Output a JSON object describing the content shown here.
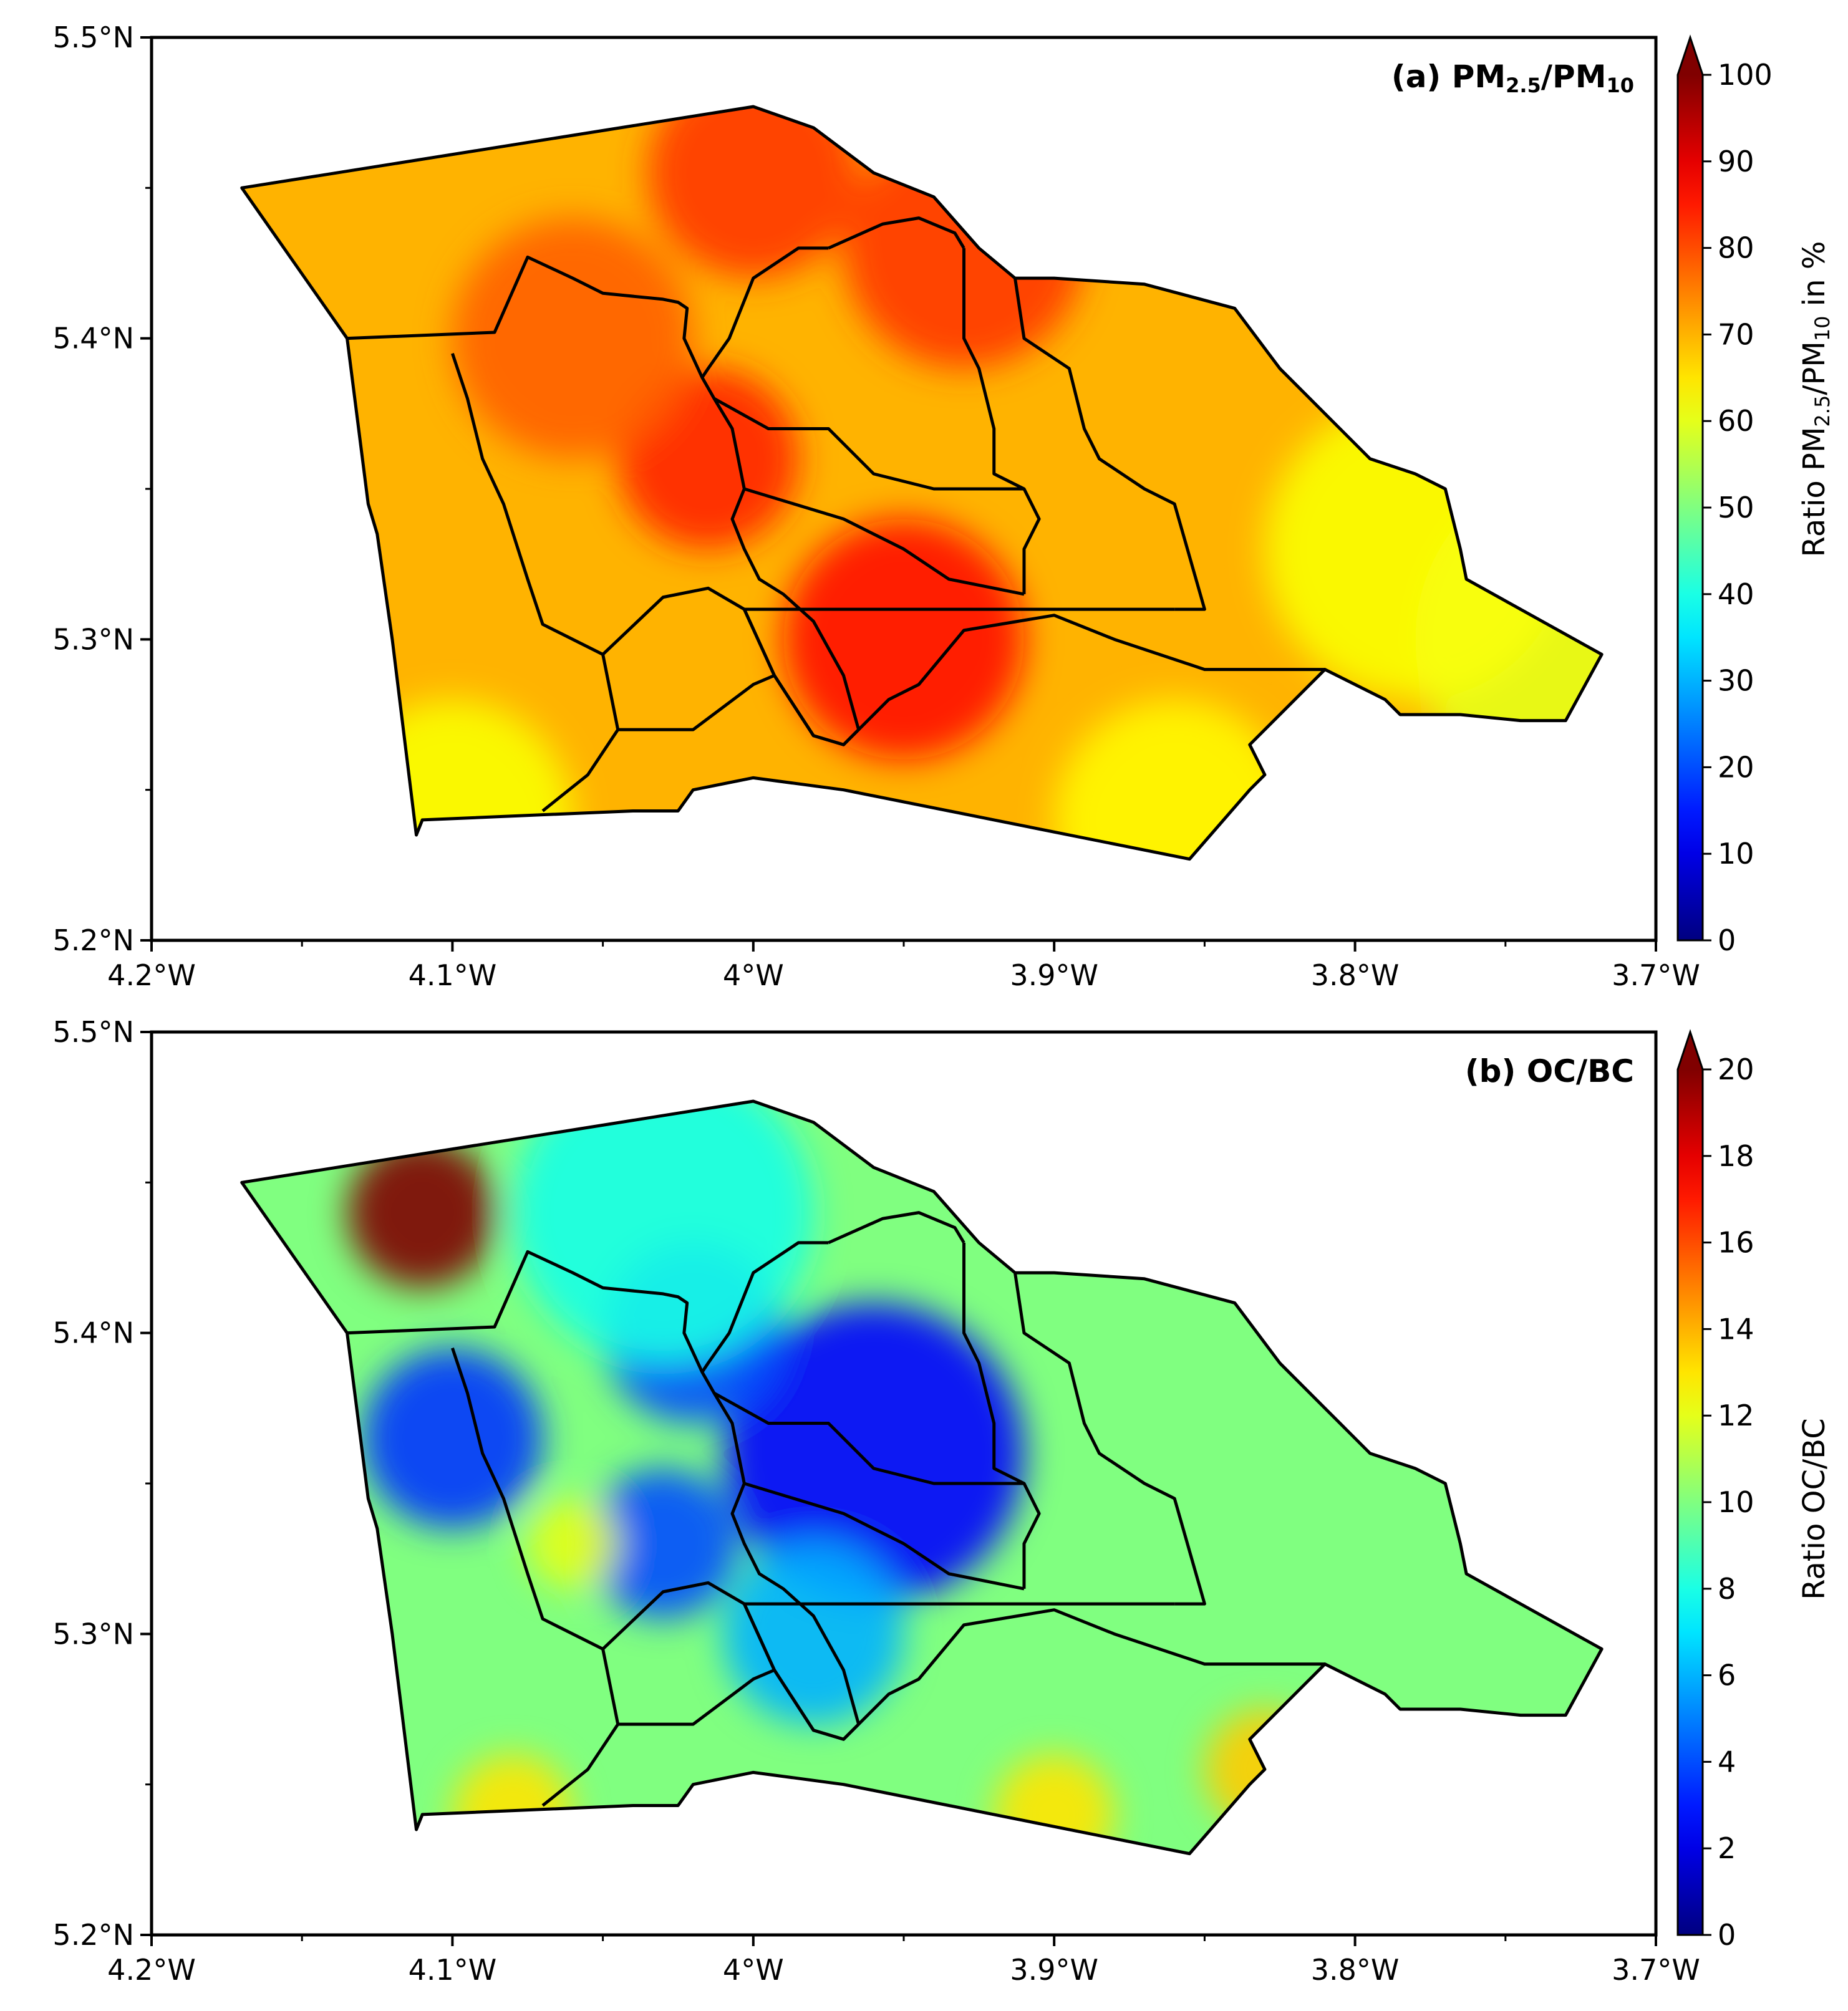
{
  "panels": [
    {
      "id": "a",
      "title_prefix": "(a) PM",
      "title_sub1": "2.5",
      "title_mid": "/PM",
      "title_sub2": "10",
      "colorbar": {
        "label_prefix": "Ratio PM",
        "label_sub1": "2.5",
        "label_mid": "/PM",
        "label_sub2": "10",
        "label_suffix": " in %",
        "ticks": [
          "0",
          "10",
          "20",
          "30",
          "40",
          "50",
          "60",
          "70",
          "80",
          "90",
          "100"
        ],
        "min": 0,
        "max": 100
      },
      "base_value": 70,
      "hotspots": [
        {
          "lon": -4.0,
          "lat": 5.455,
          "value": 82,
          "r": 0.035
        },
        {
          "lon": -3.93,
          "lat": 5.43,
          "value": 82,
          "r": 0.04
        },
        {
          "lon": -4.015,
          "lat": 5.36,
          "value": 84,
          "r": 0.03
        },
        {
          "lon": -3.95,
          "lat": 5.3,
          "value": 86,
          "r": 0.04
        },
        {
          "lon": -4.06,
          "lat": 5.4,
          "value": 78,
          "r": 0.04
        },
        {
          "lon": -3.72,
          "lat": 5.3,
          "value": 60,
          "r": 0.06
        },
        {
          "lon": -3.78,
          "lat": 5.33,
          "value": 62,
          "r": 0.05
        },
        {
          "lon": -4.1,
          "lat": 5.24,
          "value": 62,
          "r": 0.04
        },
        {
          "lon": -3.86,
          "lat": 5.24,
          "value": 63,
          "r": 0.04
        }
      ]
    },
    {
      "id": "b",
      "title_prefix": "(b) OC/BC",
      "title_sub1": "",
      "title_mid": "",
      "title_sub2": "",
      "colorbar": {
        "label_prefix": "Ratio OC/BC",
        "label_sub1": "",
        "label_mid": "",
        "label_sub2": "",
        "label_suffix": "",
        "ticks": [
          "0",
          "2",
          "4",
          "6",
          "8",
          "10",
          "12",
          "14",
          "16",
          "18",
          "20"
        ],
        "min": 0,
        "max": 20
      },
      "base_value": 10,
      "hotspots": [
        {
          "lon": -4.11,
          "lat": 5.44,
          "value": 21,
          "r": 0.025
        },
        {
          "lon": -4.1,
          "lat": 5.365,
          "value": 3.5,
          "r": 0.03
        },
        {
          "lon": -3.96,
          "lat": 5.36,
          "value": 2.5,
          "r": 0.05
        },
        {
          "lon": -4.02,
          "lat": 5.4,
          "value": 4,
          "r": 0.03
        },
        {
          "lon": -4.03,
          "lat": 5.33,
          "value": 4,
          "r": 0.025
        },
        {
          "lon": -3.98,
          "lat": 5.3,
          "value": 6,
          "r": 0.03
        },
        {
          "lon": -4.03,
          "lat": 5.44,
          "value": 8,
          "r": 0.05
        },
        {
          "lon": -4.08,
          "lat": 5.24,
          "value": 13,
          "r": 0.02
        },
        {
          "lon": -3.9,
          "lat": 5.24,
          "value": 13,
          "r": 0.02
        },
        {
          "lon": -3.83,
          "lat": 5.255,
          "value": 13.5,
          "r": 0.02
        },
        {
          "lon": -4.06,
          "lat": 5.33,
          "value": 12,
          "r": 0.015
        }
      ]
    }
  ],
  "axes": {
    "lon_min": -4.2,
    "lon_max": -3.7,
    "lat_min": 5.2,
    "lat_max": 5.5,
    "x_ticks": [
      {
        "value": -4.2,
        "label": "4.2°W"
      },
      {
        "value": -4.1,
        "label": "4.1°W"
      },
      {
        "value": -4.0,
        "label": "4°W"
      },
      {
        "value": -3.9,
        "label": "3.9°W"
      },
      {
        "value": -3.8,
        "label": "3.8°W"
      },
      {
        "value": -3.7,
        "label": "3.7°W"
      }
    ],
    "y_ticks": [
      {
        "value": 5.5,
        "label": "5.5°N"
      },
      {
        "value": 5.4,
        "label": "5.4°N"
      },
      {
        "value": 5.3,
        "label": "5.3°N"
      },
      {
        "value": 5.2,
        "label": "5.2°N"
      }
    ]
  },
  "boundaries": {
    "outline": [
      [
        -4.17,
        5.45
      ],
      [
        -4.0,
        5.477
      ],
      [
        -3.98,
        5.47
      ],
      [
        -3.96,
        5.455
      ],
      [
        -3.94,
        5.447
      ],
      [
        -3.925,
        5.43
      ],
      [
        -3.913,
        5.42
      ],
      [
        -3.9,
        5.42
      ],
      [
        -3.87,
        5.418
      ],
      [
        -3.84,
        5.41
      ],
      [
        -3.825,
        5.39
      ],
      [
        -3.81,
        5.375
      ],
      [
        -3.795,
        5.36
      ],
      [
        -3.78,
        5.355
      ],
      [
        -3.77,
        5.35
      ],
      [
        -3.765,
        5.33
      ],
      [
        -3.763,
        5.32
      ],
      [
        -3.745,
        5.31
      ],
      [
        -3.718,
        5.295
      ],
      [
        -3.73,
        5.273
      ],
      [
        -3.745,
        5.273
      ],
      [
        -3.765,
        5.275
      ],
      [
        -3.785,
        5.275
      ],
      [
        -3.79,
        5.28
      ],
      [
        -3.81,
        5.29
      ],
      [
        -3.835,
        5.265
      ],
      [
        -3.83,
        5.255
      ],
      [
        -3.835,
        5.25
      ],
      [
        -3.855,
        5.227
      ],
      [
        -3.92,
        5.24
      ],
      [
        -3.97,
        5.25
      ],
      [
        -4.0,
        5.254
      ],
      [
        -4.02,
        5.25
      ],
      [
        -4.025,
        5.243
      ],
      [
        -4.04,
        5.243
      ],
      [
        -4.11,
        5.24
      ],
      [
        -4.112,
        5.235
      ],
      [
        -4.12,
        5.3
      ],
      [
        -4.125,
        5.335
      ],
      [
        -4.128,
        5.345
      ],
      [
        -4.135,
        5.4
      ],
      [
        -4.17,
        5.45
      ]
    ],
    "districts": [
      [
        [
          -4.135,
          5.4
        ],
        [
          -4.086,
          5.402
        ],
        [
          -4.075,
          5.427
        ],
        [
          -4.06,
          5.42
        ],
        [
          -4.05,
          5.415
        ],
        [
          -4.03,
          5.413
        ],
        [
          -4.025,
          5.412
        ],
        [
          -4.022,
          5.41
        ],
        [
          -4.023,
          5.4
        ],
        [
          -4.017,
          5.387
        ],
        [
          -4.013,
          5.38
        ],
        [
          -4.007,
          5.37
        ],
        [
          -4.003,
          5.35
        ],
        [
          -4.007,
          5.34
        ],
        [
          -4.003,
          5.33
        ],
        [
          -3.998,
          5.32
        ],
        [
          -3.99,
          5.315
        ],
        [
          -3.98,
          5.306
        ],
        [
          -3.97,
          5.288
        ],
        [
          -3.965,
          5.27
        ],
        [
          -3.97,
          5.265
        ],
        [
          -3.98,
          5.268
        ],
        [
          -3.993,
          5.288
        ],
        [
          -4.003,
          5.31
        ],
        [
          -4.015,
          5.317
        ],
        [
          -4.03,
          5.314
        ],
        [
          -4.05,
          5.295
        ],
        [
          -4.07,
          5.305
        ],
        [
          -4.075,
          5.32
        ],
        [
          -4.083,
          5.345
        ],
        [
          -4.09,
          5.36
        ],
        [
          -4.095,
          5.38
        ],
        [
          -4.1,
          5.395
        ]
      ],
      [
        [
          -4.003,
          5.31
        ],
        [
          -3.993,
          5.288
        ],
        [
          -3.98,
          5.268
        ],
        [
          -3.97,
          5.265
        ],
        [
          -3.965,
          5.27
        ],
        [
          -3.955,
          5.28
        ],
        [
          -3.945,
          5.285
        ],
        [
          -3.93,
          5.303
        ],
        [
          -3.9,
          5.308
        ],
        [
          -3.88,
          5.3
        ],
        [
          -3.85,
          5.29
        ],
        [
          -3.81,
          5.29
        ]
      ],
      [
        [
          -4.003,
          5.31
        ],
        [
          -3.94,
          5.31
        ],
        [
          -3.86,
          5.31
        ]
      ],
      [
        [
          -4.013,
          5.38
        ],
        [
          -3.995,
          5.37
        ],
        [
          -3.975,
          5.37
        ],
        [
          -3.96,
          5.355
        ],
        [
          -3.94,
          5.35
        ],
        [
          -3.91,
          5.35
        ]
      ],
      [
        [
          -4.003,
          5.35
        ],
        [
          -3.97,
          5.34
        ],
        [
          -3.95,
          5.33
        ],
        [
          -3.935,
          5.32
        ],
        [
          -3.91,
          5.315
        ]
      ],
      [
        [
          -3.975,
          5.43
        ],
        [
          -3.957,
          5.438
        ],
        [
          -3.945,
          5.44
        ],
        [
          -3.933,
          5.435
        ],
        [
          -3.93,
          5.43
        ]
      ],
      [
        [
          -3.93,
          5.43
        ],
        [
          -3.93,
          5.4
        ],
        [
          -3.925,
          5.39
        ],
        [
          -3.92,
          5.37
        ],
        [
          -3.92,
          5.355
        ],
        [
          -3.91,
          5.35
        ],
        [
          -3.905,
          5.34
        ],
        [
          -3.91,
          5.33
        ],
        [
          -3.91,
          5.315
        ]
      ],
      [
        [
          -3.913,
          5.42
        ],
        [
          -3.91,
          5.4
        ],
        [
          -3.895,
          5.39
        ],
        [
          -3.89,
          5.37
        ],
        [
          -3.885,
          5.36
        ],
        [
          -3.87,
          5.35
        ],
        [
          -3.86,
          5.345
        ],
        [
          -3.85,
          5.31
        ],
        [
          -3.86,
          5.31
        ]
      ],
      [
        [
          -3.975,
          5.43
        ],
        [
          -3.985,
          5.43
        ],
        [
          -4.0,
          5.42
        ],
        [
          -4.008,
          5.4
        ],
        [
          -4.015,
          5.39
        ],
        [
          -4.017,
          5.387
        ]
      ],
      [
        [
          -4.05,
          5.295
        ],
        [
          -4.045,
          5.27
        ],
        [
          -4.055,
          5.255
        ],
        [
          -4.07,
          5.243
        ]
      ],
      [
        [
          -4.045,
          5.27
        ],
        [
          -4.02,
          5.27
        ],
        [
          -4.0,
          5.285
        ],
        [
          -3.993,
          5.288
        ]
      ]
    ]
  }
}
